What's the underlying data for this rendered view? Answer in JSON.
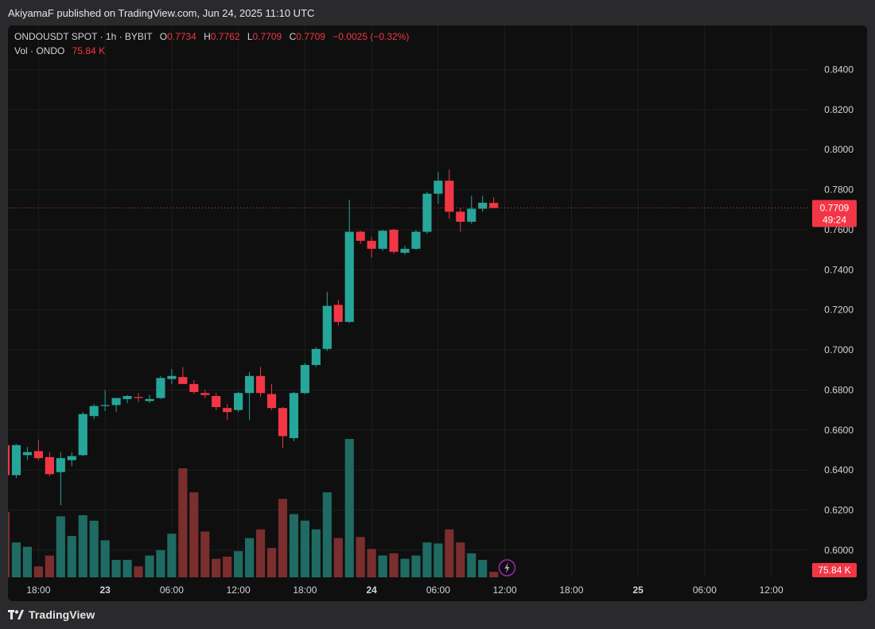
{
  "publisher_line": "AkiyamaF published on TradingView.com, Jun 24, 2025 11:10 UTC",
  "legend": {
    "symbol": "ONDOUSDT SPOT · 1h · BYBIT",
    "o_label": "O",
    "o_value": "0.7734",
    "h_label": "H",
    "h_value": "0.7762",
    "l_label": "L",
    "l_value": "0.7709",
    "c_label": "C",
    "c_value": "0.7709",
    "change": "−0.0025 (−0.32%)",
    "vol_label": "Vol · ONDO",
    "vol_value": "75.84 K"
  },
  "price_tag": {
    "price": "0.7709",
    "countdown": "49:24"
  },
  "volume_tag": "75.84 K",
  "footer": {
    "brand": "TradingView"
  },
  "colors": {
    "up": "#26a69a",
    "down": "#f23645",
    "up_vol": "#1f6b63",
    "down_vol": "#7a2e2e",
    "background": "#0f0f0f",
    "grid": "#1f1f1f"
  },
  "icons": {
    "alert": "lightning-icon",
    "logo": "tradingview-logo-icon"
  },
  "chart_data": {
    "type": "candlestick",
    "interval": "1h",
    "y_axis": {
      "ticks": [
        "0.8400",
        "0.8200",
        "0.8000",
        "0.7800",
        "0.7600",
        "0.7400",
        "0.7200",
        "0.7000",
        "0.6800",
        "0.6600",
        "0.6400",
        "0.6200",
        "0.6000"
      ],
      "range": [
        0.5865,
        0.862
      ],
      "side": "right"
    },
    "x_axis": {
      "tick_labels": [
        "18:00",
        "23",
        "06:00",
        "12:00",
        "18:00",
        "24",
        "06:00",
        "12:00",
        "18:00",
        "25",
        "06:00",
        "12:00"
      ],
      "bold_ticks": [
        "23",
        "24",
        "25"
      ],
      "tick_hours": [
        18,
        24,
        30,
        36,
        42,
        48,
        54,
        60,
        66,
        72,
        78,
        84
      ],
      "hour_range": [
        15.25,
        87.25
      ]
    },
    "current_price_line": 0.7709,
    "candles": [
      {
        "t": 15,
        "o": 0.6525,
        "h": 0.653,
        "l": 0.637,
        "c": 0.6375,
        "v": 0.6
      },
      {
        "t": 16,
        "o": 0.6375,
        "h": 0.653,
        "l": 0.636,
        "c": 0.6525,
        "v": 0.32
      },
      {
        "t": 17,
        "o": 0.6475,
        "h": 0.6515,
        "l": 0.645,
        "c": 0.649,
        "v": 0.28
      },
      {
        "t": 18,
        "o": 0.6495,
        "h": 0.655,
        "l": 0.645,
        "c": 0.646,
        "v": 0.1
      },
      {
        "t": 19,
        "o": 0.6465,
        "h": 0.649,
        "l": 0.637,
        "c": 0.638,
        "v": 0.2
      },
      {
        "t": 20,
        "o": 0.639,
        "h": 0.649,
        "l": 0.6225,
        "c": 0.646,
        "v": 0.56
      },
      {
        "t": 21,
        "o": 0.645,
        "h": 0.649,
        "l": 0.642,
        "c": 0.647,
        "v": 0.38
      },
      {
        "t": 22,
        "o": 0.6475,
        "h": 0.669,
        "l": 0.647,
        "c": 0.668,
        "v": 0.57
      },
      {
        "t": 23,
        "o": 0.667,
        "h": 0.673,
        "l": 0.6655,
        "c": 0.672,
        "v": 0.52
      },
      {
        "t": 24,
        "o": 0.672,
        "h": 0.68,
        "l": 0.6695,
        "c": 0.6725,
        "v": 0.34
      },
      {
        "t": 25,
        "o": 0.6725,
        "h": 0.676,
        "l": 0.669,
        "c": 0.676,
        "v": 0.16
      },
      {
        "t": 26,
        "o": 0.6755,
        "h": 0.6775,
        "l": 0.6735,
        "c": 0.677,
        "v": 0.16
      },
      {
        "t": 27,
        "o": 0.6765,
        "h": 0.6785,
        "l": 0.674,
        "c": 0.676,
        "v": 0.1
      },
      {
        "t": 28,
        "o": 0.6745,
        "h": 0.6775,
        "l": 0.6735,
        "c": 0.6755,
        "v": 0.2
      },
      {
        "t": 29,
        "o": 0.676,
        "h": 0.687,
        "l": 0.6755,
        "c": 0.686,
        "v": 0.25
      },
      {
        "t": 30,
        "o": 0.6855,
        "h": 0.6905,
        "l": 0.683,
        "c": 0.687,
        "v": 0.4
      },
      {
        "t": 31,
        "o": 0.6865,
        "h": 0.6915,
        "l": 0.684,
        "c": 0.683,
        "v": 1.0
      },
      {
        "t": 32,
        "o": 0.683,
        "h": 0.685,
        "l": 0.678,
        "c": 0.679,
        "v": 0.78
      },
      {
        "t": 33,
        "o": 0.6785,
        "h": 0.68,
        "l": 0.676,
        "c": 0.6775,
        "v": 0.42
      },
      {
        "t": 34,
        "o": 0.677,
        "h": 0.6785,
        "l": 0.67,
        "c": 0.6715,
        "v": 0.17
      },
      {
        "t": 35,
        "o": 0.671,
        "h": 0.673,
        "l": 0.665,
        "c": 0.669,
        "v": 0.19
      },
      {
        "t": 36,
        "o": 0.67,
        "h": 0.679,
        "l": 0.669,
        "c": 0.6785,
        "v": 0.24
      },
      {
        "t": 37,
        "o": 0.6785,
        "h": 0.689,
        "l": 0.665,
        "c": 0.687,
        "v": 0.36
      },
      {
        "t": 38,
        "o": 0.687,
        "h": 0.6915,
        "l": 0.6765,
        "c": 0.6785,
        "v": 0.44
      },
      {
        "t": 39,
        "o": 0.678,
        "h": 0.683,
        "l": 0.67,
        "c": 0.671,
        "v": 0.27
      },
      {
        "t": 40,
        "o": 0.671,
        "h": 0.6715,
        "l": 0.651,
        "c": 0.657,
        "v": 0.72
      },
      {
        "t": 41,
        "o": 0.656,
        "h": 0.679,
        "l": 0.6545,
        "c": 0.6785,
        "v": 0.58
      },
      {
        "t": 42,
        "o": 0.6785,
        "h": 0.6935,
        "l": 0.678,
        "c": 0.6925,
        "v": 0.52
      },
      {
        "t": 43,
        "o": 0.6925,
        "h": 0.7015,
        "l": 0.6915,
        "c": 0.7005,
        "v": 0.44
      },
      {
        "t": 44,
        "o": 0.7005,
        "h": 0.729,
        "l": 0.6995,
        "c": 0.722,
        "v": 0.78
      },
      {
        "t": 45,
        "o": 0.7225,
        "h": 0.725,
        "l": 0.712,
        "c": 0.714,
        "v": 0.36
      },
      {
        "t": 46,
        "o": 0.714,
        "h": 0.775,
        "l": 0.7135,
        "c": 0.759,
        "v": 1.27
      },
      {
        "t": 47,
        "o": 0.759,
        "h": 0.7595,
        "l": 0.753,
        "c": 0.7545,
        "v": 0.37
      },
      {
        "t": 48,
        "o": 0.7545,
        "h": 0.7565,
        "l": 0.746,
        "c": 0.7505,
        "v": 0.26
      },
      {
        "t": 49,
        "o": 0.7505,
        "h": 0.76,
        "l": 0.7495,
        "c": 0.7595,
        "v": 0.2
      },
      {
        "t": 50,
        "o": 0.76,
        "h": 0.7605,
        "l": 0.748,
        "c": 0.749,
        "v": 0.22
      },
      {
        "t": 51,
        "o": 0.7485,
        "h": 0.752,
        "l": 0.7475,
        "c": 0.7505,
        "v": 0.17
      },
      {
        "t": 52,
        "o": 0.7505,
        "h": 0.76,
        "l": 0.75,
        "c": 0.759,
        "v": 0.2
      },
      {
        "t": 53,
        "o": 0.759,
        "h": 0.779,
        "l": 0.758,
        "c": 0.778,
        "v": 0.32
      },
      {
        "t": 54,
        "o": 0.778,
        "h": 0.789,
        "l": 0.773,
        "c": 0.7845,
        "v": 0.31
      },
      {
        "t": 55,
        "o": 0.7845,
        "h": 0.79,
        "l": 0.7655,
        "c": 0.769,
        "v": 0.44
      },
      {
        "t": 56,
        "o": 0.769,
        "h": 0.771,
        "l": 0.759,
        "c": 0.764,
        "v": 0.32
      },
      {
        "t": 57,
        "o": 0.764,
        "h": 0.777,
        "l": 0.763,
        "c": 0.7705,
        "v": 0.22
      },
      {
        "t": 58,
        "o": 0.7705,
        "h": 0.777,
        "l": 0.769,
        "c": 0.7735,
        "v": 0.16
      },
      {
        "t": 59,
        "o": 0.7734,
        "h": 0.7762,
        "l": 0.7709,
        "c": 0.7709,
        "v": 0.05
      }
    ],
    "volume_scale_max": 1.27
  }
}
